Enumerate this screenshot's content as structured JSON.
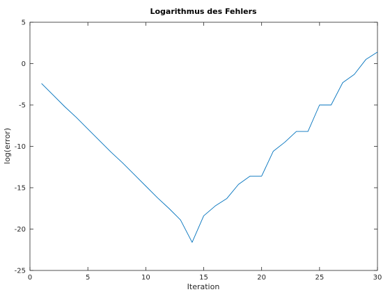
{
  "chart_data": {
    "type": "line",
    "title": "Logarithmus des Fehlers",
    "xlabel": "Iteration",
    "ylabel": "log(error)",
    "xlim": [
      0,
      30
    ],
    "ylim": [
      -25,
      5
    ],
    "xticks": [
      0,
      5,
      10,
      15,
      20,
      25,
      30
    ],
    "yticks": [
      -25,
      -20,
      -15,
      -10,
      -5,
      0,
      5
    ],
    "grid": false,
    "series": [
      {
        "color": "#0072bd",
        "x": [
          1,
          2,
          3,
          4,
          5,
          6,
          7,
          8,
          9,
          10,
          11,
          12,
          13,
          14,
          15,
          16,
          17,
          18,
          19,
          20,
          21,
          22,
          23,
          24,
          25,
          26,
          27,
          28,
          29,
          30
        ],
        "y": [
          -2.4,
          -3.8,
          -5.2,
          -6.5,
          -7.9,
          -9.3,
          -10.7,
          -12.0,
          -13.4,
          -14.8,
          -16.2,
          -17.5,
          -18.9,
          -21.6,
          -18.4,
          -17.2,
          -16.3,
          -14.6,
          -13.6,
          -13.6,
          -10.6,
          -9.5,
          -8.2,
          -8.2,
          -5.0,
          -5.0,
          -2.3,
          -1.3,
          0.5,
          1.4
        ]
      }
    ]
  }
}
